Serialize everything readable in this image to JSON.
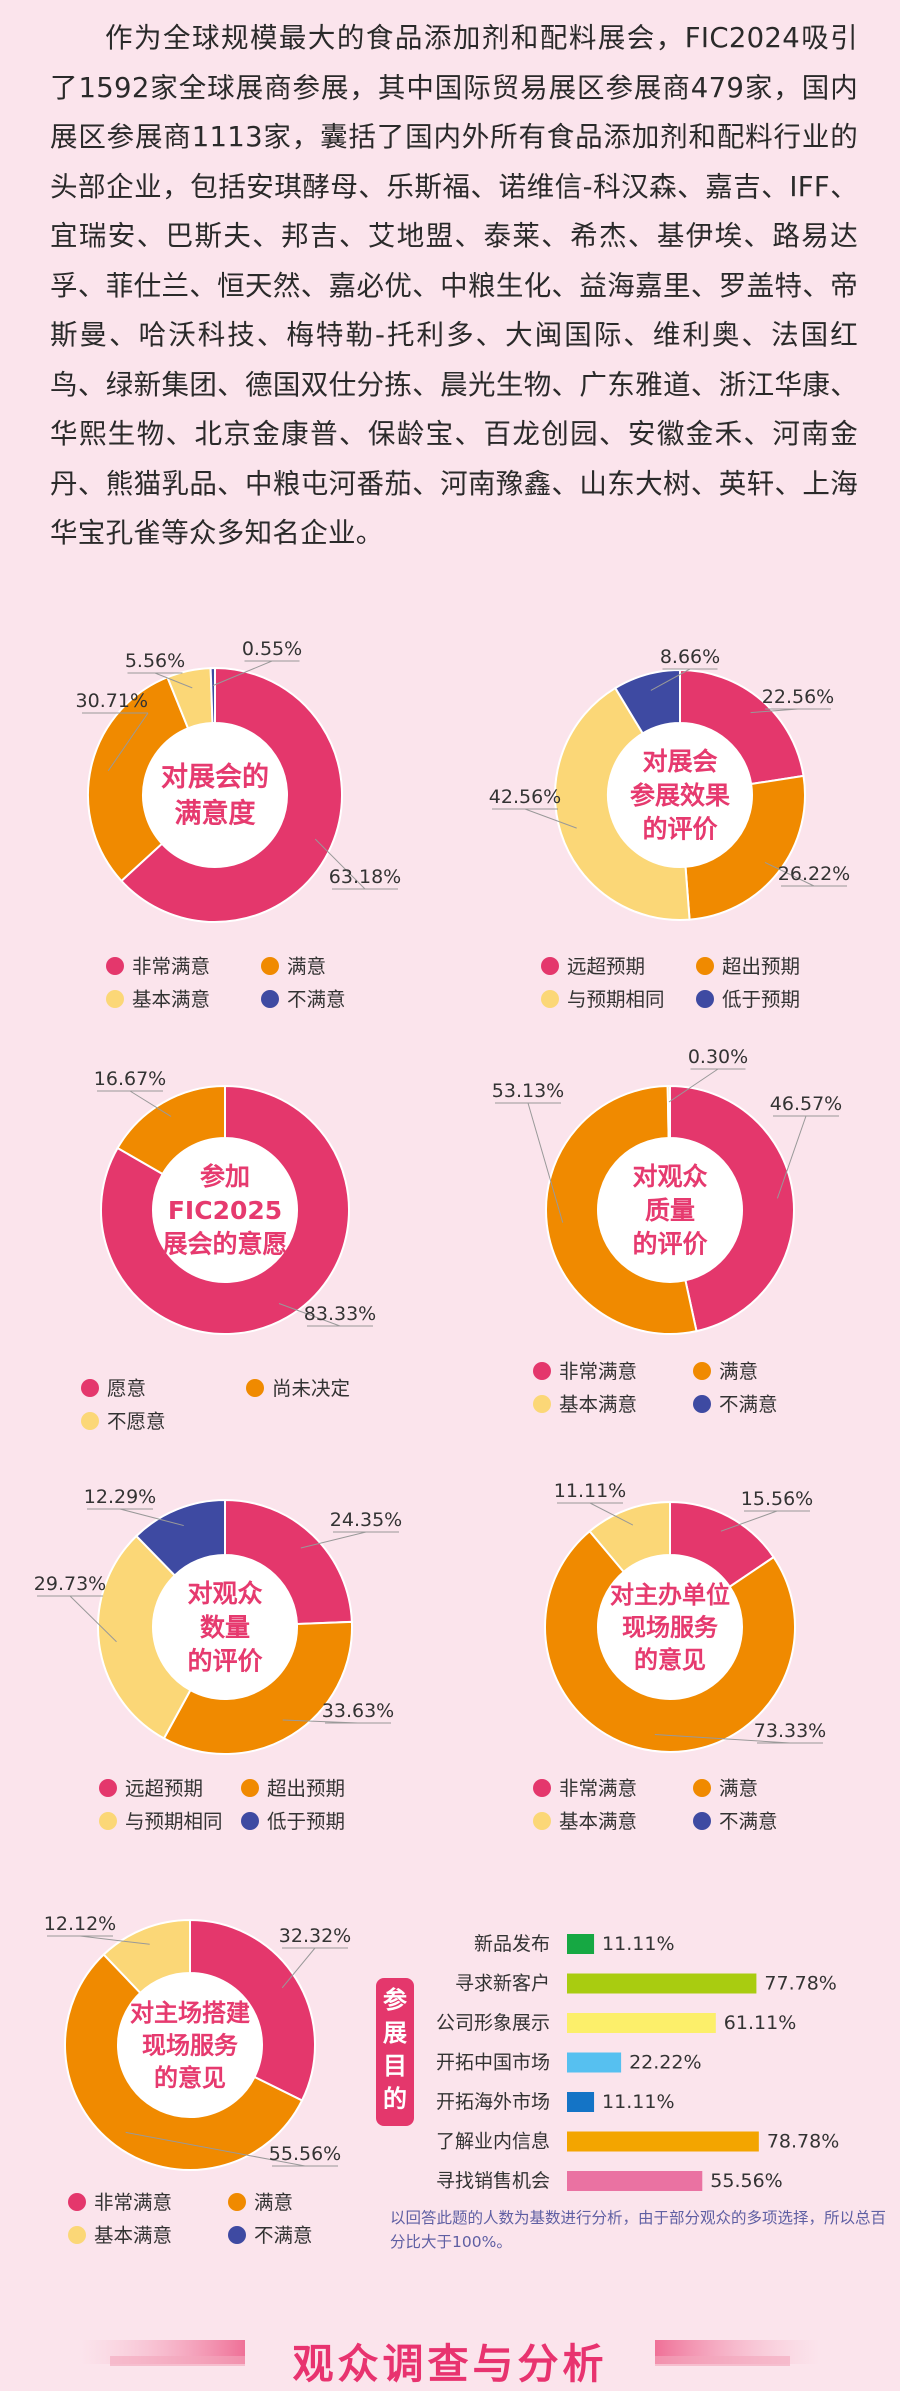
{
  "intro_text": "作为全球规模最大的食品添加剂和配料展会，FIC2024吸引了1592家全球展商参展，其中国际贸易展区参展商479家，国内展区参展商1113家，囊括了国内外所有食品添加剂和配料行业的头部企业，包括安琪酵母、乐斯福、诺维信-科汉森、嘉吉、IFF、宜瑞安、巴斯夫、邦吉、艾地盟、泰莱、希杰、基伊埃、路易达孚、菲仕兰、恒天然、嘉必优、中粮生化、益海嘉里、罗盖特、帝斯曼、哈沃科技、梅特勒-托利多、大闽国际、维利奥、法国红鸟、绿新集团、德国双仕分拣、晨光生物、广东雅道、浙江华康、华熙生物、北京金康普、保龄宝、百龙创园、安徽金禾、河南金丹、熊猫乳品、中粮屯河番茄、河南豫鑫、山东大树、英轩、上海华宝孔雀等众多知名企业。",
  "colors": {
    "pink": "#e4376c",
    "orange": "#f08a00",
    "yellow": "#fbd777",
    "navy": "#3e4aa2",
    "green": "#16a843",
    "lime": "#a9cc10",
    "lightyellow": "#fcef6a",
    "skyblue": "#56c0f0",
    "blue": "#1474c6",
    "gold": "#f3a500",
    "rose": "#ea72a2"
  },
  "chart_data": [
    {
      "type": "pie",
      "title": "对展会的满意度",
      "title_lines": [
        "对展会的",
        "满意度"
      ],
      "series": [
        {
          "name": "非常满意",
          "value": 63.18,
          "label": "63.18%",
          "color": "pink"
        },
        {
          "name": "满意",
          "value": 30.71,
          "label": "30.71%",
          "color": "orange"
        },
        {
          "name": "基本满意",
          "value": 5.56,
          "label": "5.56%",
          "color": "yellow"
        },
        {
          "name": "不满意",
          "value": 0.55,
          "label": "0.55%",
          "color": "navy"
        }
      ]
    },
    {
      "type": "pie",
      "title": "对展会参展效果的评价",
      "title_lines": [
        "对展会",
        "参展效果",
        "的评价"
      ],
      "series": [
        {
          "name": "远超预期",
          "value": 22.56,
          "label": "22.56%",
          "color": "pink"
        },
        {
          "name": "超出预期",
          "value": 26.22,
          "label": "26.22%",
          "color": "orange"
        },
        {
          "name": "与预期相同",
          "value": 42.56,
          "label": "42.56%",
          "color": "yellow"
        },
        {
          "name": "低于预期",
          "value": 8.66,
          "label": "8.66%",
          "color": "navy"
        }
      ]
    },
    {
      "type": "pie",
      "title": "参加FIC2025展会的意愿",
      "title_lines": [
        "参加",
        "FIC2025",
        "展会的意愿"
      ],
      "series": [
        {
          "name": "愿意",
          "value": 83.33,
          "label": "83.33%",
          "color": "pink"
        },
        {
          "name": "尚未决定",
          "value": 16.67,
          "label": "16.67%",
          "color": "orange"
        },
        {
          "name": "不愿意",
          "value": 0,
          "label": "",
          "color": "yellow"
        }
      ]
    },
    {
      "type": "pie",
      "title": "对观众质量的评价",
      "title_lines": [
        "对观众",
        "质量",
        "的评价"
      ],
      "series": [
        {
          "name": "非常满意",
          "value": 46.57,
          "label": "46.57%",
          "color": "pink"
        },
        {
          "name": "满意",
          "value": 53.13,
          "label": "53.13%",
          "color": "orange"
        },
        {
          "name": "基本满意",
          "value": 0.3,
          "label": "0.30%",
          "color": "yellow"
        },
        {
          "name": "不满意",
          "value": 0,
          "label": "",
          "color": "navy"
        }
      ]
    },
    {
      "type": "pie",
      "title": "对观众数量的评价",
      "title_lines": [
        "对观众",
        "数量",
        "的评价"
      ],
      "series": [
        {
          "name": "远超预期",
          "value": 24.35,
          "label": "24.35%",
          "color": "pink"
        },
        {
          "name": "超出预期",
          "value": 33.63,
          "label": "33.63%",
          "color": "orange"
        },
        {
          "name": "与预期相同",
          "value": 29.73,
          "label": "29.73%",
          "color": "yellow"
        },
        {
          "name": "低于预期",
          "value": 12.29,
          "label": "12.29%",
          "color": "navy"
        }
      ]
    },
    {
      "type": "pie",
      "title": "对主办单位现场服务的意见",
      "title_lines": [
        "对主办单位",
        "现场服务",
        "的意见"
      ],
      "series": [
        {
          "name": "非常满意",
          "value": 15.56,
          "label": "15.56%",
          "color": "pink"
        },
        {
          "name": "满意",
          "value": 73.33,
          "label": "73.33%",
          "color": "orange"
        },
        {
          "name": "基本满意",
          "value": 11.11,
          "label": "11.11%",
          "color": "yellow"
        },
        {
          "name": "不满意",
          "value": 0,
          "label": "",
          "color": "navy"
        }
      ]
    },
    {
      "type": "pie",
      "title": "对主场搭建现场服务的意见",
      "title_lines": [
        "对主场搭建",
        "现场服务",
        "的意见"
      ],
      "series": [
        {
          "name": "非常满意",
          "value": 32.32,
          "label": "32.32%",
          "color": "pink"
        },
        {
          "name": "满意",
          "value": 55.56,
          "label": "55.56%",
          "color": "orange"
        },
        {
          "name": "基本满意",
          "value": 12.12,
          "label": "12.12%",
          "color": "yellow"
        },
        {
          "name": "不满意",
          "value": 0,
          "label": "",
          "color": "navy"
        }
      ]
    },
    {
      "type": "bar",
      "title": "参展目的",
      "title_chars": [
        "参",
        "展",
        "目",
        "的"
      ],
      "categories": [
        "新品发布",
        "寻求新客户",
        "公司形象展示",
        "开拓中国市场",
        "开拓海外市场",
        "了解业内信息",
        "寻找销售机会"
      ],
      "values": [
        11.11,
        77.78,
        61.11,
        22.22,
        11.11,
        78.78,
        55.56
      ],
      "labels": [
        "11.11%",
        "77.78%",
        "61.11%",
        "22.22%",
        "11.11%",
        "78.78%",
        "55.56%"
      ],
      "bar_colors": [
        "green",
        "lime",
        "lightyellow",
        "skyblue",
        "blue",
        "gold",
        "rose"
      ],
      "xlim": [
        0,
        100
      ]
    }
  ],
  "note": "以回答此题的人数为基数进行分析，由于部分观众的多项选择，所以总百分比大于100%。",
  "footer_title": "观众调查与分析"
}
